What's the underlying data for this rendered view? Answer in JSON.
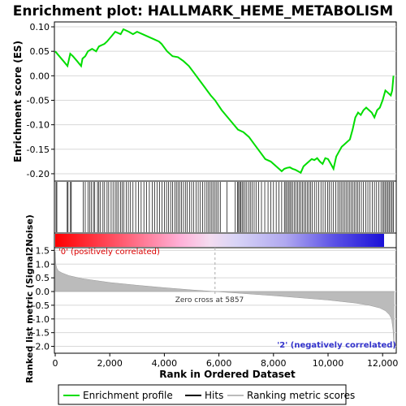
{
  "chart_data": {
    "type": "line",
    "title": "Enrichment plot: HALLMARK_HEME_METABOLISM",
    "xlabel": "Rank in Ordered Dataset",
    "x_ticks": [
      0,
      2000,
      4000,
      6000,
      8000,
      10000,
      12000
    ],
    "x_tick_labels": [
      "0",
      "2,000",
      "4,000",
      "6,000",
      "8,000",
      "10,000",
      "12,000"
    ],
    "xlim": [
      0,
      12500
    ],
    "es_panel": {
      "ylabel": "Enrichment score (ES)",
      "ylim": [
        -0.215,
        0.11
      ],
      "y_ticks": [
        0.1,
        0.05,
        0.0,
        -0.05,
        -0.1,
        -0.15,
        -0.2
      ],
      "y_tick_labels": [
        "0.10",
        "0.05",
        "0.00",
        "-0.05",
        "-0.10",
        "-0.15",
        "-0.20"
      ],
      "color": "#00dd00",
      "series": [
        {
          "x": [
            0,
            150,
            300,
            450,
            550,
            650,
            800,
            950,
            1000,
            1100,
            1200,
            1350,
            1500,
            1600,
            1800,
            1900,
            2050,
            2200,
            2400,
            2500,
            2700,
            2850,
            3000,
            3200,
            3400,
            3600,
            3800,
            3900,
            4100,
            4300,
            4500,
            4700,
            4900,
            5100,
            5300,
            5500,
            5700,
            5857,
            6100,
            6400,
            6700,
            6900,
            7100,
            7300,
            7500,
            7700,
            7900,
            8100,
            8300,
            8400,
            8500,
            8600,
            8700,
            8800,
            8900,
            9000,
            9100,
            9200,
            9300,
            9400,
            9500,
            9600,
            9700,
            9800,
            9900,
            10000,
            10100,
            10200,
            10300,
            10400,
            10500,
            10600,
            10700,
            10800,
            10900,
            11000,
            11100,
            11200,
            11300,
            11400,
            11500,
            11600,
            11700,
            11800,
            11900,
            12000,
            12100,
            12200,
            12300,
            12350,
            12400
          ],
          "y": [
            0.05,
            0.04,
            0.03,
            0.02,
            0.045,
            0.04,
            0.03,
            0.02,
            0.035,
            0.04,
            0.05,
            0.055,
            0.05,
            0.06,
            0.065,
            0.07,
            0.08,
            0.09,
            0.085,
            0.095,
            0.09,
            0.085,
            0.09,
            0.085,
            0.08,
            0.075,
            0.07,
            0.065,
            0.05,
            0.04,
            0.038,
            0.03,
            0.02,
            0.005,
            -0.01,
            -0.025,
            -0.04,
            -0.05,
            -0.07,
            -0.09,
            -0.11,
            -0.115,
            -0.125,
            -0.14,
            -0.155,
            -0.17,
            -0.175,
            -0.185,
            -0.195,
            -0.19,
            -0.188,
            -0.187,
            -0.19,
            -0.192,
            -0.195,
            -0.198,
            -0.185,
            -0.18,
            -0.175,
            -0.17,
            -0.172,
            -0.168,
            -0.175,
            -0.18,
            -0.168,
            -0.17,
            -0.18,
            -0.19,
            -0.165,
            -0.155,
            -0.145,
            -0.14,
            -0.135,
            -0.13,
            -0.11,
            -0.085,
            -0.075,
            -0.08,
            -0.07,
            -0.065,
            -0.07,
            -0.075,
            -0.085,
            -0.07,
            -0.065,
            -0.05,
            -0.03,
            -0.035,
            -0.04,
            -0.03,
            0.0
          ]
        }
      ]
    },
    "hits_panel": {
      "hit_positions": [
        30,
        60,
        440,
        470,
        560,
        590,
        1030,
        1100,
        1200,
        1270,
        1330,
        1400,
        1450,
        1550,
        1600,
        1660,
        1750,
        1810,
        1900,
        1960,
        2050,
        2120,
        2200,
        2260,
        2320,
        2400,
        2460,
        2520,
        2600,
        2680,
        2760,
        2850,
        2950,
        3050,
        3150,
        3250,
        3350,
        3450,
        3560,
        3650,
        3740,
        3820,
        3910,
        4000,
        4080,
        4150,
        4230,
        4300,
        4380,
        4440,
        4500,
        4560,
        4630,
        4700,
        4770,
        4840,
        4920,
        5000,
        5080,
        5160,
        5240,
        5320,
        5400,
        5480,
        5560,
        5620,
        5680,
        5740,
        5800,
        5860,
        5920,
        5980,
        6050,
        6300,
        6600,
        6680,
        6720,
        6760,
        6800,
        6850,
        6900,
        6960,
        7020,
        7090,
        7150,
        7220,
        7290,
        7360,
        7460,
        7560,
        7680,
        7800,
        7900,
        8000,
        8100,
        8200,
        8300,
        8400,
        8450,
        8500,
        8550,
        8600,
        8650,
        8700,
        8760,
        8820,
        8880,
        8940,
        9000,
        9060,
        9120,
        9180,
        9240,
        9300,
        9360,
        9420,
        9500,
        9580,
        9660,
        9740,
        9820,
        9900,
        9980,
        10050,
        10120,
        10200,
        10280,
        10360,
        10420,
        10480,
        10540,
        10600,
        10660,
        10720,
        10780,
        10840,
        10900,
        10960,
        11020,
        11080,
        11140,
        11220,
        11300,
        11380,
        11460,
        11540,
        11620,
        11700,
        11780,
        11860,
        11940,
        12000,
        12050,
        12100,
        12150,
        12200,
        12250,
        12300,
        12350,
        12400
      ]
    },
    "metric_panel": {
      "ylabel": "Ranked list metric (Signal2Noise)",
      "ylim": [
        -2.25,
        1.6
      ],
      "y_ticks": [
        1.5,
        1.0,
        0.5,
        0.0,
        -0.5,
        -1.0,
        -1.5,
        -2.0
      ],
      "y_tick_labels": [
        "1.5",
        "1.0",
        "0.5",
        "0.0",
        "-0.5",
        "-1.0",
        "-1.5",
        "-2.0"
      ],
      "zero_cross": 5857,
      "zero_cross_label": "Zero cross at 5857",
      "positive_label": "'0' (positively correlated)",
      "negative_label": "'2' (negatively correlated)",
      "profile_x": [
        0,
        20,
        60,
        120,
        250,
        500,
        1000,
        2000,
        3000,
        4000,
        5000,
        5857,
        7000,
        8000,
        9000,
        10000,
        11000,
        11500,
        11900,
        12100,
        12250,
        12330,
        12380,
        12420
      ],
      "profile_y": [
        1.45,
        1.0,
        0.85,
        0.75,
        0.68,
        0.58,
        0.47,
        0.33,
        0.23,
        0.14,
        0.06,
        0.0,
        -0.08,
        -0.15,
        -0.23,
        -0.31,
        -0.42,
        -0.5,
        -0.6,
        -0.7,
        -0.85,
        -1.0,
        -1.4,
        -2.1
      ]
    },
    "legend": {
      "placement": "bottom",
      "items": [
        {
          "label": "Enrichment profile",
          "color": "#00dd00"
        },
        {
          "label": "Hits",
          "color": "#000000"
        },
        {
          "label": "Ranking metric scores",
          "color": "#bbbbbb"
        }
      ]
    }
  }
}
